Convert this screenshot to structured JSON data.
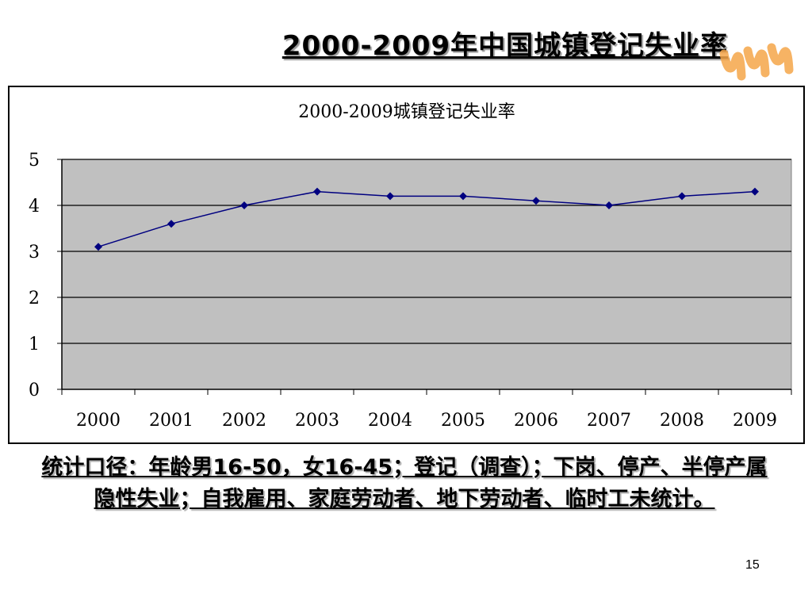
{
  "slide": {
    "title": "2000-2009年中国城镇登记失业率",
    "caption": "统计口径：年龄男16-50，女16-45；登记（调查）；下岗、停产、半停产属隐性失业；自我雇用、家庭劳动者、地下劳动者、临时工未统计。",
    "page_number": "15",
    "accent_color": "#F5A64A"
  },
  "chart_data": {
    "type": "line",
    "title": "2000-2009城镇登记失业率",
    "categories": [
      "2000",
      "2001",
      "2002",
      "2003",
      "2004",
      "2005",
      "2006",
      "2007",
      "2008",
      "2009"
    ],
    "series": [
      {
        "values": [
          3.1,
          3.6,
          4.0,
          4.3,
          4.2,
          4.2,
          4.1,
          4.0,
          4.2,
          4.3
        ],
        "color": "#000080"
      }
    ],
    "ylim": [
      0,
      5
    ],
    "yticks": [
      "0",
      "1",
      "2",
      "3",
      "4",
      "5"
    ],
    "grid": true,
    "plot_background": "#C0C0C0",
    "legend": "none"
  }
}
